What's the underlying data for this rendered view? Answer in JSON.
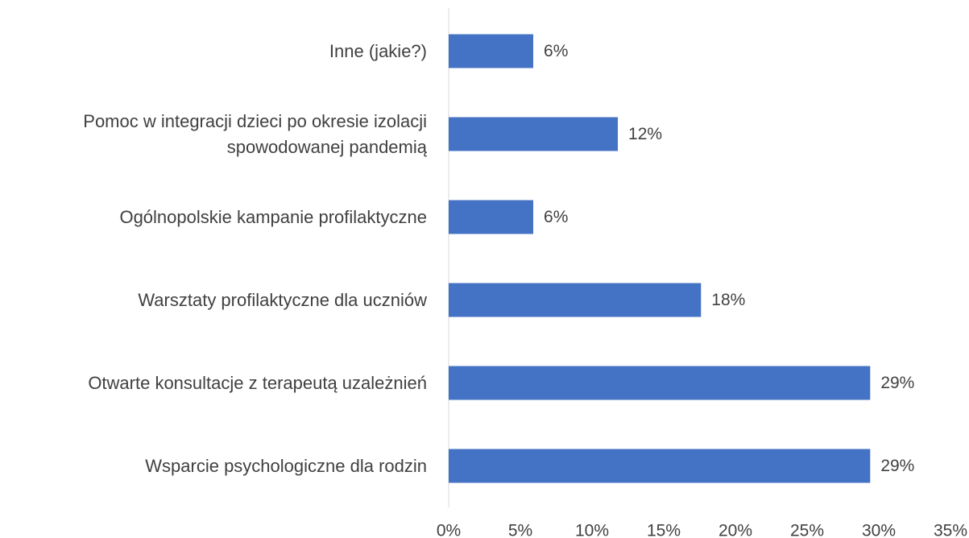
{
  "chart_data": {
    "type": "barh",
    "categories": [
      "Inne (jakie?)",
      "Pomoc w integracji dzieci po okresie izolacji\nspowodowanej pandemią",
      "Ogólnopolskie kampanie profilaktyczne",
      "Warsztaty profilaktyczne dla uczniów",
      "Otwarte konsultacje z terapeutą uzależnień",
      "Wsparcie psychologiczne dla rodzin"
    ],
    "values": [
      5.9,
      11.8,
      5.9,
      17.6,
      29.4,
      29.4
    ],
    "value_labels": [
      "6%",
      "12%",
      "6%",
      "18%",
      "29%",
      "29%"
    ],
    "color": "#4472c4",
    "xlim": [
      0,
      35
    ],
    "xticks": [
      {
        "value": 0,
        "label": "0%"
      },
      {
        "value": 5,
        "label": "5%"
      },
      {
        "value": 10,
        "label": "10%"
      },
      {
        "value": 15,
        "label": "15%"
      },
      {
        "value": 20,
        "label": "20%"
      },
      {
        "value": 25,
        "label": "25%"
      },
      {
        "value": 30,
        "label": "30%"
      },
      {
        "value": 35,
        "label": "35%"
      }
    ],
    "grid": false
  }
}
